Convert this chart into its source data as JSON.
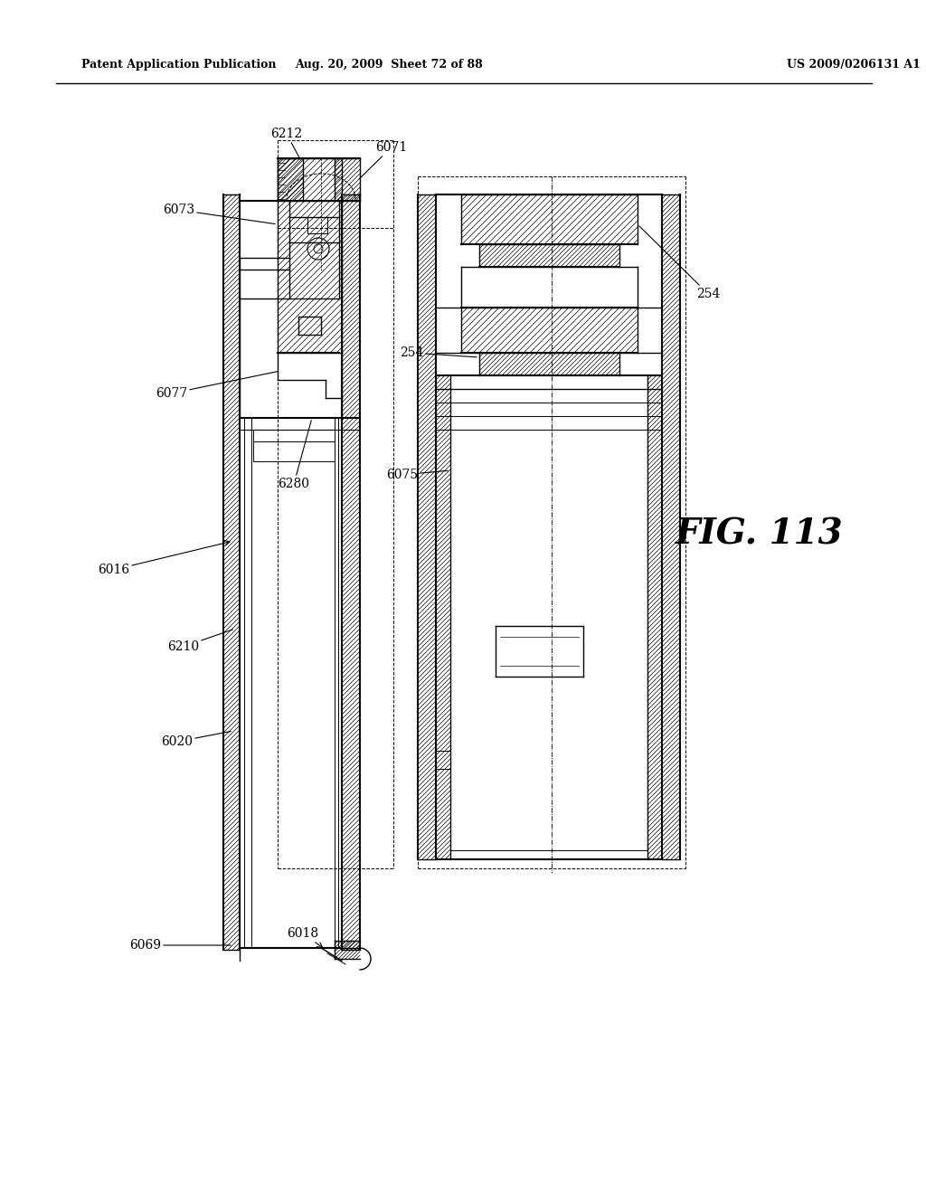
{
  "header_left": "Patent Application Publication",
  "header_mid": "Aug. 20, 2009  Sheet 72 of 88",
  "header_right": "US 2009/0206131 A1",
  "fig_label": "FIG. 113",
  "bg_color": "#ffffff"
}
